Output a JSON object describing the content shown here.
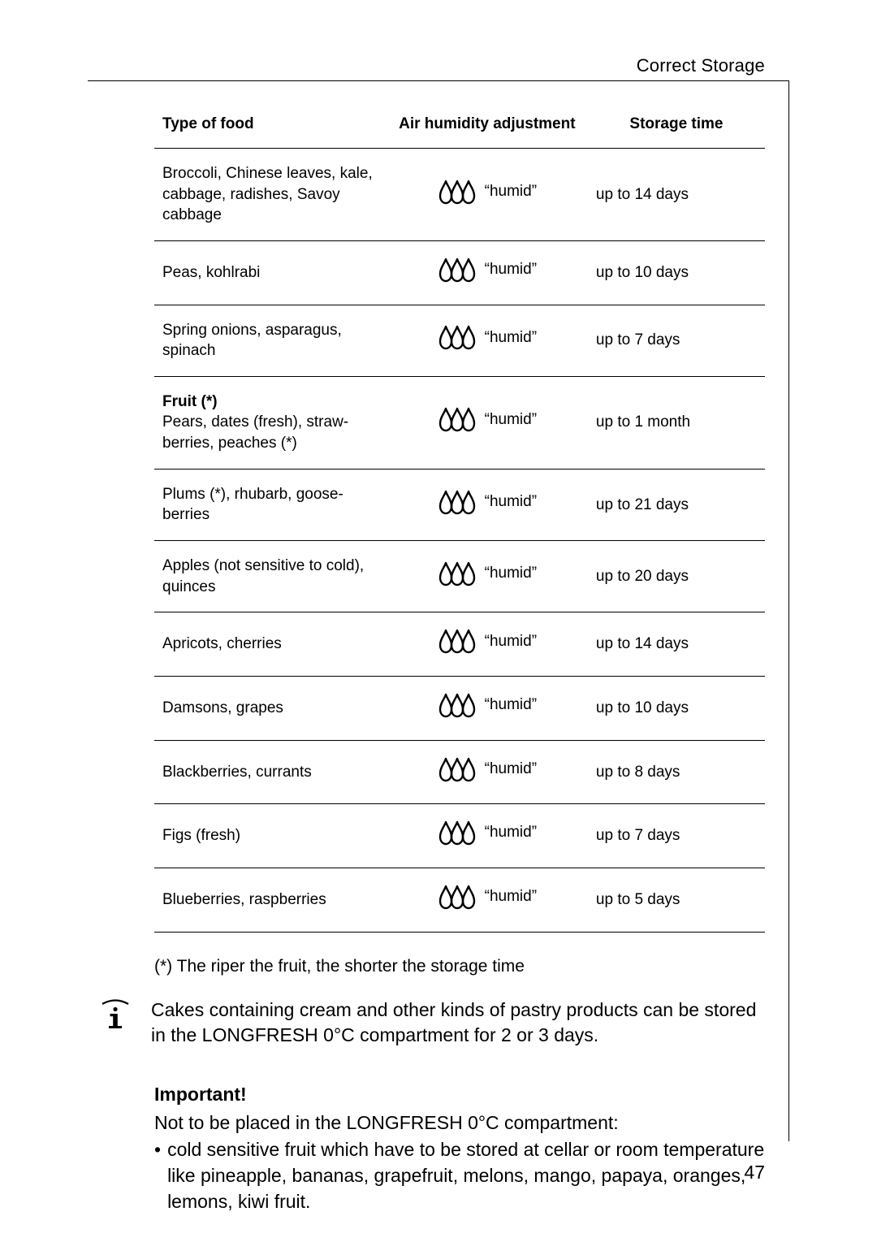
{
  "header": {
    "title": "Correct Storage"
  },
  "table": {
    "headers": {
      "food": "Type of food",
      "humidity": "Air humidity adjustment",
      "time": "Storage time"
    },
    "humidity_label": "“humid”",
    "icon_color": "#000000",
    "rows": [
      {
        "food": "Broccoli, Chinese leaves, kale, cabbage, radishes, Savoy cabbage",
        "time": "up to 14 days",
        "bold_prefix": ""
      },
      {
        "food": "Peas, kohlrabi",
        "time": "up to 10 days",
        "bold_prefix": ""
      },
      {
        "food": "Spring onions, asparagus, spinach",
        "time": "up to 7 days",
        "bold_prefix": ""
      },
      {
        "food": "Pears, dates (fresh), straw­berries, peaches (*)",
        "time": "up to 1 month",
        "bold_prefix": "Fruit (*)"
      },
      {
        "food": "Plums (*), rhubarb, goose­berries",
        "time": "up to 21 days",
        "bold_prefix": ""
      },
      {
        "food": "Apples (not sensitive to cold), quinces",
        "time": "up to 20 days",
        "bold_prefix": ""
      },
      {
        "food": "Apricots, cherries",
        "time": "up to 14 days",
        "bold_prefix": ""
      },
      {
        "food": "Damsons, grapes",
        "time": "up to 10 days",
        "bold_prefix": ""
      },
      {
        "food": "Blackberries, currants",
        "time": "up to 8 days",
        "bold_prefix": ""
      },
      {
        "food": "Figs (fresh)",
        "time": "up to 7 days",
        "bold_prefix": ""
      },
      {
        "food": "Blueberries, raspberries",
        "time": "up to 5 days",
        "bold_prefix": ""
      }
    ]
  },
  "footnote": "(*)  The riper the fruit, the shorter the storage time",
  "info_note": "Cakes containing cream and other kinds of pastry products can be sto­red in the LONGFRESH 0°C compartment for 2 or 3 days.",
  "important": {
    "label": "Important!",
    "lead": "Not to be placed in the LONGFRESH 0°C compartment:",
    "bullet": "cold sensitive fruit which have to be stored at cellar or room temper­ature like pineapple, bananas, grapefruit, melons, mango, papaya, oranges, lemons, kiwi fruit."
  },
  "page_number": "47"
}
